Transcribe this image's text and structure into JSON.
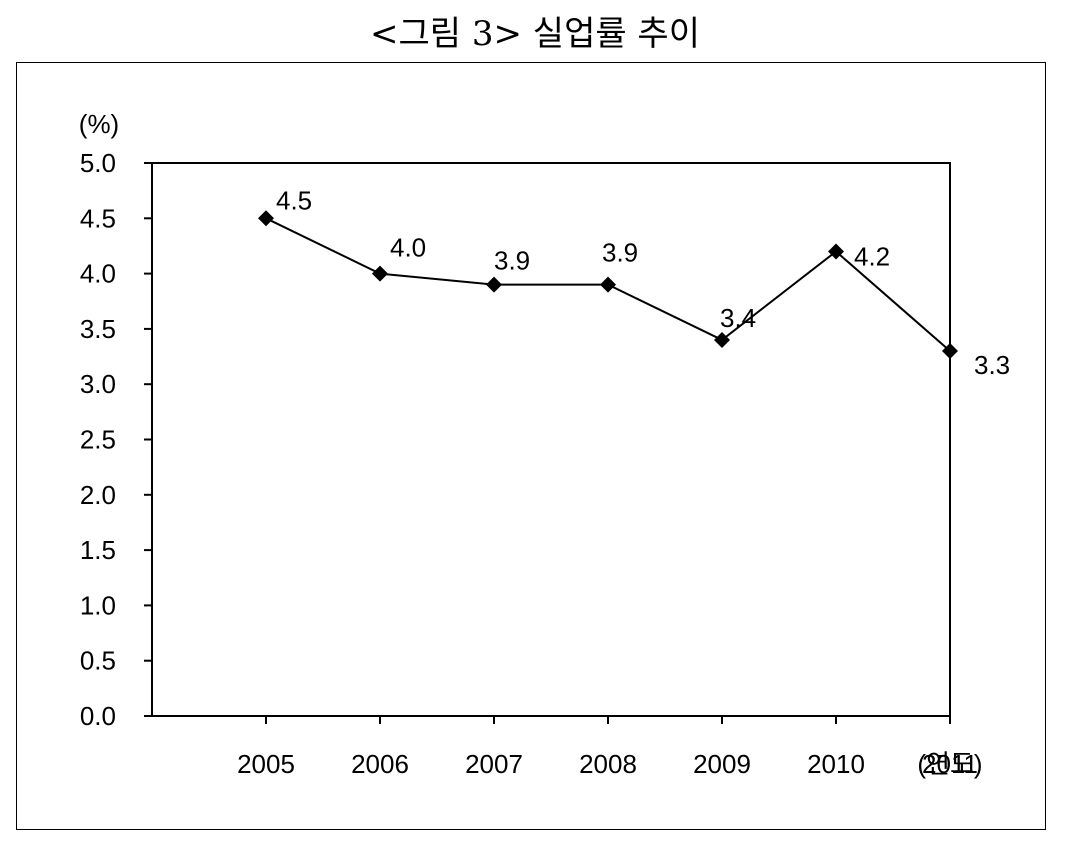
{
  "figure": {
    "title": "<그림 3> 실업률 추이"
  },
  "chart_data": {
    "type": "line",
    "title": "<그림 3> 실업률 추이",
    "ylabel": "(%)",
    "xlabel": "(연도)",
    "categories": [
      "2005",
      "2006",
      "2007",
      "2008",
      "2009",
      "2010",
      "2011"
    ],
    "series": [
      {
        "values": [
          4.5,
          4.0,
          3.9,
          3.9,
          3.4,
          4.2,
          3.3
        ],
        "labels": [
          "4.5",
          "4.0",
          "3.9",
          "3.9",
          "3.4",
          "4.2",
          "3.3"
        ],
        "marker": "diamond",
        "color": "#000000"
      }
    ],
    "ylim": [
      0,
      5
    ],
    "yticks": [
      "0.0",
      "0.5",
      "1.0",
      "1.5",
      "2.0",
      "2.5",
      "3.0",
      "3.5",
      "4.0",
      "4.5",
      "5.0"
    ],
    "grid": false,
    "legend": "none"
  }
}
